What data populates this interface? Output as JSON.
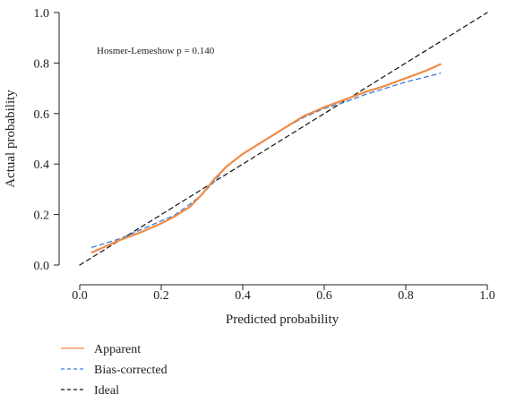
{
  "chart_data": {
    "type": "line",
    "title": "",
    "xlabel": "Predicted probability",
    "ylabel": "Actual probability",
    "xlim": [
      0.0,
      1.0
    ],
    "ylim": [
      0.0,
      1.0
    ],
    "xticks": [
      "0.0",
      "0.2",
      "0.4",
      "0.6",
      "0.8",
      "1.0"
    ],
    "yticks": [
      "0.0",
      "0.2",
      "0.4",
      "0.6",
      "0.8",
      "1.0"
    ],
    "grid": false,
    "legend_position": "bottom-left",
    "annotation": "Hosmer-Lemeshow p = 0.140",
    "series": [
      {
        "name": "Apparent",
        "color": "#F08A45",
        "dash": "solid",
        "x": [
          0.03,
          0.1,
          0.15,
          0.2,
          0.23,
          0.27,
          0.3,
          0.33,
          0.36,
          0.4,
          0.45,
          0.5,
          0.55,
          0.6,
          0.65,
          0.7,
          0.75,
          0.8,
          0.85,
          0.885
        ],
        "y": [
          0.05,
          0.1,
          0.13,
          0.165,
          0.19,
          0.23,
          0.28,
          0.34,
          0.39,
          0.44,
          0.49,
          0.54,
          0.59,
          0.625,
          0.655,
          0.685,
          0.71,
          0.74,
          0.77,
          0.795
        ]
      },
      {
        "name": "Bias-corrected",
        "color": "#3B7DD8",
        "dash": "dashed",
        "x": [
          0.03,
          0.1,
          0.15,
          0.2,
          0.23,
          0.27,
          0.3,
          0.33,
          0.36,
          0.4,
          0.45,
          0.5,
          0.55,
          0.6,
          0.65,
          0.7,
          0.75,
          0.8,
          0.85,
          0.885
        ],
        "y": [
          0.07,
          0.105,
          0.14,
          0.175,
          0.195,
          0.24,
          0.28,
          0.33,
          0.39,
          0.44,
          0.49,
          0.54,
          0.585,
          0.62,
          0.645,
          0.675,
          0.7,
          0.725,
          0.745,
          0.76
        ]
      },
      {
        "name": "Ideal",
        "color": "#111111",
        "dash": "dashed",
        "x": [
          0.0,
          1.0
        ],
        "y": [
          0.0,
          1.0
        ]
      }
    ]
  }
}
